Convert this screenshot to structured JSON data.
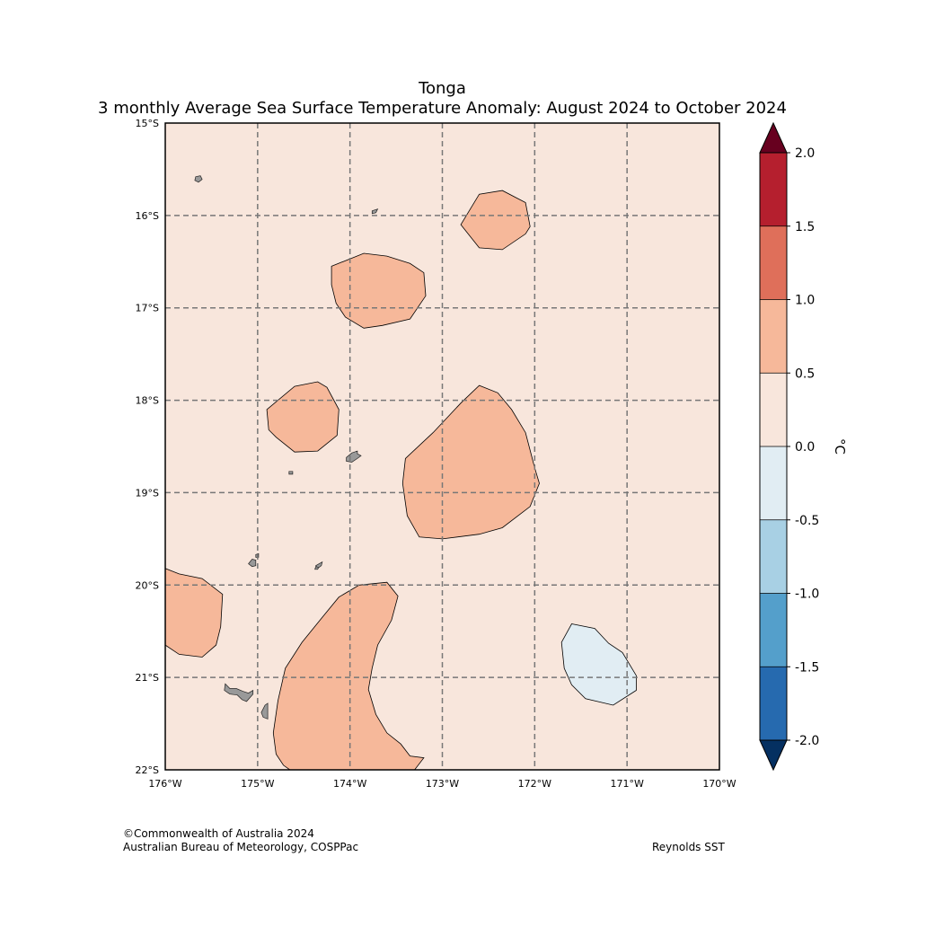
{
  "title": {
    "line1": "Tonga",
    "line2": "3 monthly Average Sea Surface Temperature Anomaly: August 2024 to October 2024"
  },
  "map": {
    "lon_range": [
      -176,
      -170
    ],
    "lat_range": [
      -22,
      -15
    ],
    "gridlines": true,
    "background_bin_color": "#f8e6dc",
    "x_ticks": [
      {
        "value": -176,
        "label": "176°W"
      },
      {
        "value": -175,
        "label": "175°W"
      },
      {
        "value": -174,
        "label": "174°W"
      },
      {
        "value": -173,
        "label": "173°W"
      },
      {
        "value": -172,
        "label": "172°W"
      },
      {
        "value": -171,
        "label": "171°W"
      },
      {
        "value": -170,
        "label": "170°W"
      }
    ],
    "y_ticks": [
      {
        "value": -15,
        "label": "15°S"
      },
      {
        "value": -16,
        "label": "16°S"
      },
      {
        "value": -17,
        "label": "17°S"
      },
      {
        "value": -18,
        "label": "18°S"
      },
      {
        "value": -19,
        "label": "19°S"
      },
      {
        "value": -20,
        "label": "20°S"
      },
      {
        "value": -21,
        "label": "21°S"
      },
      {
        "value": -22,
        "label": "22°S"
      }
    ],
    "land_color": "#999999",
    "contour_regions": [
      {
        "name": "warm-patch-northeast",
        "bin": "0.5 to 1.0",
        "color": "#f6b89a",
        "points": [
          [
            -172.8,
            -16.1
          ],
          [
            -172.6,
            -15.77
          ],
          [
            -172.35,
            -15.73
          ],
          [
            -172.1,
            -15.86
          ],
          [
            -172.05,
            -16.12
          ],
          [
            -172.1,
            -16.2
          ],
          [
            -172.35,
            -16.37
          ],
          [
            -172.6,
            -16.35
          ]
        ]
      },
      {
        "name": "warm-patch-north-central",
        "bin": "0.5 to 1.0",
        "color": "#f6b89a",
        "points": [
          [
            -174.2,
            -16.55
          ],
          [
            -173.85,
            -16.41
          ],
          [
            -173.6,
            -16.44
          ],
          [
            -173.35,
            -16.52
          ],
          [
            -173.2,
            -16.62
          ],
          [
            -173.18,
            -16.87
          ],
          [
            -173.35,
            -17.12
          ],
          [
            -173.65,
            -17.19
          ],
          [
            -173.85,
            -17.22
          ],
          [
            -174.05,
            -17.1
          ],
          [
            -174.15,
            -16.95
          ],
          [
            -174.2,
            -16.75
          ]
        ]
      },
      {
        "name": "warm-patch-west",
        "bin": "0.5 to 1.0",
        "color": "#f6b89a",
        "points": [
          [
            -174.9,
            -18.1
          ],
          [
            -174.6,
            -17.85
          ],
          [
            -174.35,
            -17.8
          ],
          [
            -174.25,
            -17.86
          ],
          [
            -174.12,
            -18.1
          ],
          [
            -174.14,
            -18.38
          ],
          [
            -174.35,
            -18.55
          ],
          [
            -174.6,
            -18.56
          ],
          [
            -174.8,
            -18.4
          ],
          [
            -174.88,
            -18.32
          ]
        ]
      },
      {
        "name": "warm-patch-central",
        "bin": "0.5 to 1.0",
        "color": "#f6b89a",
        "points": [
          [
            -173.4,
            -18.63
          ],
          [
            -173.1,
            -18.35
          ],
          [
            -172.8,
            -18.03
          ],
          [
            -172.6,
            -17.84
          ],
          [
            -172.4,
            -17.92
          ],
          [
            -172.25,
            -18.1
          ],
          [
            -172.1,
            -18.35
          ],
          [
            -172.0,
            -18.73
          ],
          [
            -171.95,
            -18.9
          ],
          [
            -172.05,
            -19.15
          ],
          [
            -172.35,
            -19.38
          ],
          [
            -172.6,
            -19.45
          ],
          [
            -173.0,
            -19.5
          ],
          [
            -173.25,
            -19.48
          ],
          [
            -173.38,
            -19.25
          ],
          [
            -173.43,
            -18.9
          ]
        ]
      },
      {
        "name": "warm-patch-southwest-edge",
        "bin": "0.5 to 1.0",
        "color": "#f6b89a",
        "points": [
          [
            -176.0,
            -19.82
          ],
          [
            -175.85,
            -19.88
          ],
          [
            -175.6,
            -19.93
          ],
          [
            -175.38,
            -20.1
          ],
          [
            -175.4,
            -20.45
          ],
          [
            -175.45,
            -20.65
          ],
          [
            -175.6,
            -20.78
          ],
          [
            -175.85,
            -20.75
          ],
          [
            -176.0,
            -20.65
          ]
        ]
      },
      {
        "name": "warm-patch-south",
        "bin": "0.5 to 1.0",
        "color": "#f6b89a",
        "points": [
          [
            -174.65,
            -22.0
          ],
          [
            -174.72,
            -21.95
          ],
          [
            -174.8,
            -21.83
          ],
          [
            -174.83,
            -21.6
          ],
          [
            -174.78,
            -21.25
          ],
          [
            -174.7,
            -20.9
          ],
          [
            -174.52,
            -20.62
          ],
          [
            -174.3,
            -20.35
          ],
          [
            -174.12,
            -20.13
          ],
          [
            -173.9,
            -20.0
          ],
          [
            -173.6,
            -19.97
          ],
          [
            -173.48,
            -20.12
          ],
          [
            -173.55,
            -20.38
          ],
          [
            -173.7,
            -20.65
          ],
          [
            -173.76,
            -20.9
          ],
          [
            -173.8,
            -21.13
          ],
          [
            -173.72,
            -21.4
          ],
          [
            -173.6,
            -21.6
          ],
          [
            -173.45,
            -21.72
          ],
          [
            -173.35,
            -21.85
          ],
          [
            -173.2,
            -21.87
          ],
          [
            -173.3,
            -22.0
          ]
        ]
      },
      {
        "name": "cool-patch-southeast",
        "bin": "-0.5 to 0.0",
        "color": "#e1edf3",
        "points": [
          [
            -171.6,
            -20.42
          ],
          [
            -171.35,
            -20.47
          ],
          [
            -171.2,
            -20.63
          ],
          [
            -171.05,
            -20.73
          ],
          [
            -170.9,
            -20.98
          ],
          [
            -170.9,
            -21.14
          ],
          [
            -171.15,
            -21.3
          ],
          [
            -171.45,
            -21.23
          ],
          [
            -171.6,
            -21.08
          ],
          [
            -171.68,
            -20.9
          ],
          [
            -171.71,
            -20.62
          ]
        ]
      }
    ],
    "islands": [
      {
        "name": "island-niuafoou",
        "points": [
          [
            -175.67,
            -15.58
          ],
          [
            -175.62,
            -15.57
          ],
          [
            -175.6,
            -15.61
          ],
          [
            -175.64,
            -15.64
          ],
          [
            -175.68,
            -15.62
          ]
        ]
      },
      {
        "name": "island-tafahi",
        "points": [
          [
            -173.76,
            -15.95
          ],
          [
            -173.7,
            -15.93
          ],
          [
            -173.72,
            -15.97
          ],
          [
            -173.76,
            -15.98
          ]
        ]
      },
      {
        "name": "island-vavau",
        "points": [
          [
            -174.04,
            -18.62
          ],
          [
            -173.98,
            -18.57
          ],
          [
            -173.92,
            -18.55
          ],
          [
            -173.92,
            -18.58
          ],
          [
            -173.88,
            -18.6
          ],
          [
            -173.92,
            -18.63
          ],
          [
            -173.98,
            -18.67
          ],
          [
            -174.04,
            -18.66
          ]
        ]
      },
      {
        "name": "island-small-west",
        "points": [
          [
            -174.66,
            -18.77
          ],
          [
            -174.62,
            -18.77
          ],
          [
            -174.62,
            -18.8
          ],
          [
            -174.66,
            -18.8
          ]
        ]
      },
      {
        "name": "island-haapai-west",
        "points": [
          [
            -175.06,
            -19.72
          ],
          [
            -175.02,
            -19.73
          ],
          [
            -175.02,
            -19.79
          ],
          [
            -175.06,
            -19.8
          ],
          [
            -175.1,
            -19.77
          ]
        ]
      },
      {
        "name": "island-haapai-small",
        "points": [
          [
            -175.02,
            -19.67
          ],
          [
            -174.99,
            -19.66
          ],
          [
            -174.99,
            -19.7
          ],
          [
            -175.02,
            -19.7
          ]
        ]
      },
      {
        "name": "island-haapai-east",
        "points": [
          [
            -174.37,
            -19.79
          ],
          [
            -174.3,
            -19.75
          ],
          [
            -174.31,
            -19.79
          ],
          [
            -174.35,
            -19.82
          ]
        ]
      },
      {
        "name": "island-haapai-dot",
        "points": [
          [
            -174.37,
            -19.8
          ],
          [
            -174.34,
            -19.81
          ],
          [
            -174.35,
            -19.83
          ],
          [
            -174.38,
            -19.83
          ]
        ]
      },
      {
        "name": "island-tongatapu",
        "points": [
          [
            -175.35,
            -21.07
          ],
          [
            -175.3,
            -21.12
          ],
          [
            -175.23,
            -21.12
          ],
          [
            -175.16,
            -21.15
          ],
          [
            -175.1,
            -21.17
          ],
          [
            -175.05,
            -21.14
          ],
          [
            -175.05,
            -21.18
          ],
          [
            -175.12,
            -21.26
          ],
          [
            -175.17,
            -21.24
          ],
          [
            -175.22,
            -21.19
          ],
          [
            -175.3,
            -21.18
          ],
          [
            -175.36,
            -21.14
          ]
        ]
      },
      {
        "name": "island-eua",
        "points": [
          [
            -174.92,
            -21.3
          ],
          [
            -174.89,
            -21.28
          ],
          [
            -174.89,
            -21.45
          ],
          [
            -174.94,
            -21.43
          ],
          [
            -174.96,
            -21.38
          ]
        ]
      }
    ]
  },
  "colorbar": {
    "unit": "°C",
    "extend_high_color": "#67001f",
    "extend_low_color": "#053061",
    "bins": [
      {
        "from": 1.5,
        "to": 2.0,
        "color": "#b51f2e"
      },
      {
        "from": 1.0,
        "to": 1.5,
        "color": "#df6f5a"
      },
      {
        "from": 0.5,
        "to": 1.0,
        "color": "#f6b89a"
      },
      {
        "from": 0.0,
        "to": 0.5,
        "color": "#f8e6dc"
      },
      {
        "from": -0.5,
        "to": 0.0,
        "color": "#e1edf3"
      },
      {
        "from": -1.0,
        "to": -0.5,
        "color": "#a8d0e4"
      },
      {
        "from": -1.5,
        "to": -1.0,
        "color": "#549fcb"
      },
      {
        "from": -2.0,
        "to": -1.5,
        "color": "#266aaf"
      }
    ],
    "tick_labels": [
      "2.0",
      "1.5",
      "1.0",
      "0.5",
      "0.0",
      "-0.5",
      "-1.0",
      "-1.5",
      "-2.0"
    ]
  },
  "footer": {
    "copyright": "©Commonwealth of Australia 2024",
    "agency": "Australian Bureau of Meteorology, COSPPac",
    "source": "Reynolds SST"
  }
}
